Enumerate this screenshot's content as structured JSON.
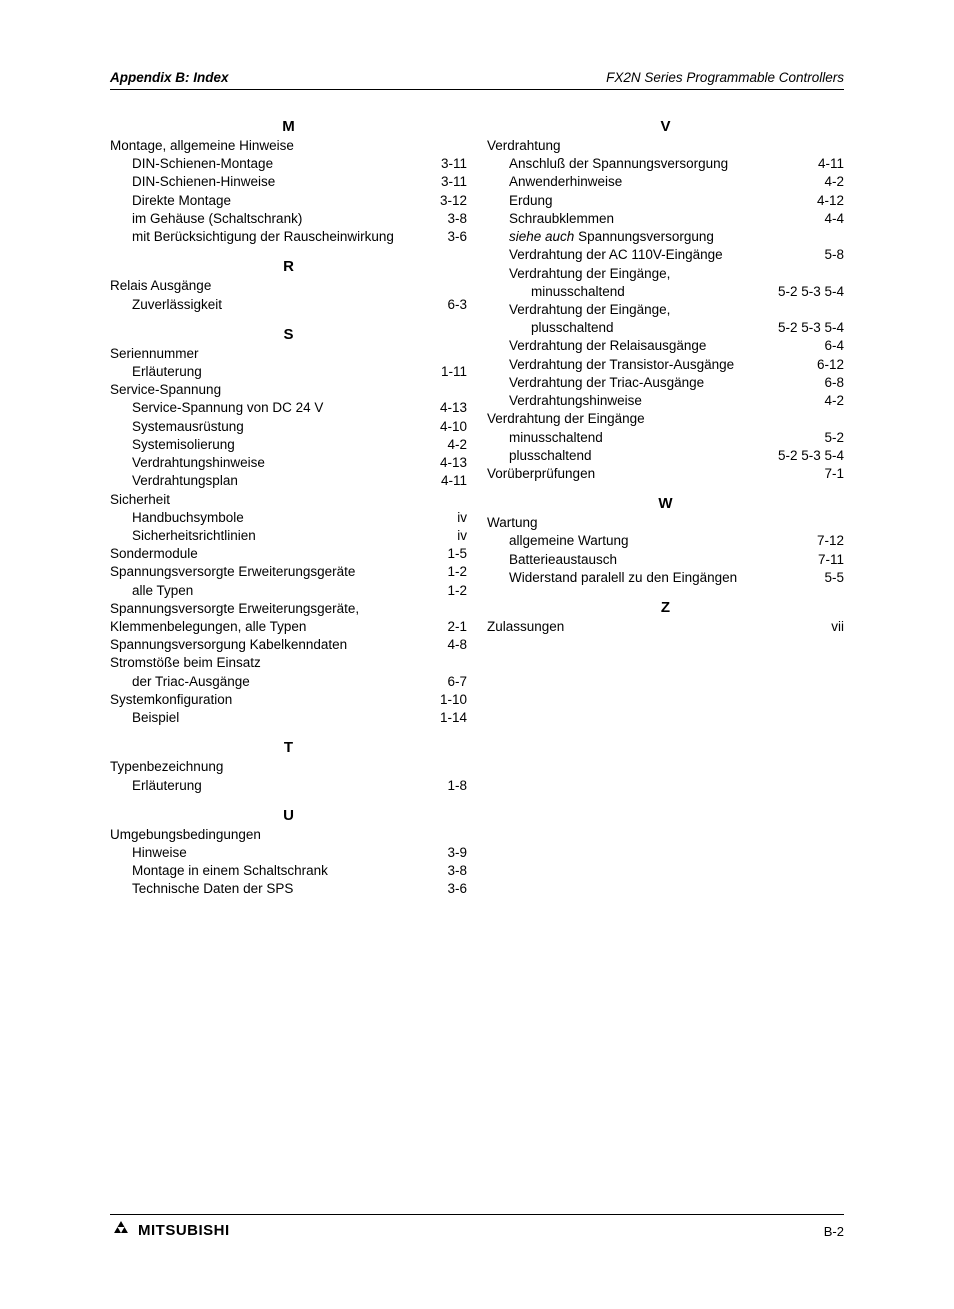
{
  "header": {
    "left": "Appendix B: Index",
    "right": "FX2N Series Programmable Controllers"
  },
  "footer": {
    "brand": "MITSUBISHI",
    "page": "B-2"
  },
  "left_col": [
    {
      "type": "letter",
      "text": "M",
      "first": true
    },
    {
      "type": "l0",
      "term": "Montage, allgemeine Hinweise",
      "pages": ""
    },
    {
      "type": "l1",
      "term": "DIN-Schienen-Montage",
      "pages": "3-11"
    },
    {
      "type": "l1",
      "term": "DIN-Schienen-Hinweise",
      "pages": "3-11"
    },
    {
      "type": "l1",
      "term": "Direkte Montage",
      "pages": "3-12"
    },
    {
      "type": "l1",
      "term": "im Gehäuse (Schaltschrank)",
      "pages": "3-8"
    },
    {
      "type": "l1",
      "term": "mit Berücksichtigung der Rauscheinwirkung",
      "pages": "3-6"
    },
    {
      "type": "letter",
      "text": "R"
    },
    {
      "type": "l0",
      "term": "Relais Ausgänge",
      "pages": ""
    },
    {
      "type": "l1",
      "term": "Zuverlässigkeit",
      "pages": "6-3"
    },
    {
      "type": "letter",
      "text": "S"
    },
    {
      "type": "l0",
      "term": "Seriennummer",
      "pages": ""
    },
    {
      "type": "l1",
      "term": "Erläuterung",
      "pages": "1-11"
    },
    {
      "type": "l0",
      "term": "Service-Spannung",
      "pages": ""
    },
    {
      "type": "l1",
      "term": "Service-Spannung von DC 24 V",
      "pages": "4-13"
    },
    {
      "type": "l1",
      "term": "Systemausrüstung",
      "pages": "4-10"
    },
    {
      "type": "l1",
      "term": "Systemisolierung",
      "pages": "4-2"
    },
    {
      "type": "l1",
      "term": "Verdrahtungshinweise",
      "pages": "4-13"
    },
    {
      "type": "l1",
      "term": "Verdrahtungsplan",
      "pages": "4-11"
    },
    {
      "type": "l0",
      "term": "Sicherheit",
      "pages": ""
    },
    {
      "type": "l1",
      "term": "Handbuchsymbole",
      "pages": "iv"
    },
    {
      "type": "l1",
      "term": "Sicherheitsrichtlinien",
      "pages": "iv"
    },
    {
      "type": "l0",
      "term": "Sondermodule",
      "pages": "1-5"
    },
    {
      "type": "l0",
      "term": "Spannungsversorgte Erweiterungsgeräte",
      "pages": "1-2"
    },
    {
      "type": "l1",
      "term": "alle Typen",
      "pages": "1-2"
    },
    {
      "type": "l0",
      "term": "Spannungsversorgte Erweiterungsgeräte,",
      "pages": ""
    },
    {
      "type": "l0",
      "term": "Klemmenbelegungen, alle Typen",
      "pages": "2-1"
    },
    {
      "type": "l0",
      "term": "Spannungsversorgung Kabelkenndaten",
      "pages": "4-8"
    },
    {
      "type": "l0",
      "term": "Stromstöße beim Einsatz",
      "pages": ""
    },
    {
      "type": "l1",
      "term": "der Triac-Ausgänge",
      "pages": "6-7"
    },
    {
      "type": "l0",
      "term": "Systemkonfiguration",
      "pages": "1-10"
    },
    {
      "type": "l1",
      "term": "Beispiel",
      "pages": "1-14"
    },
    {
      "type": "letter",
      "text": "T"
    },
    {
      "type": "l0",
      "term": "Typenbezeichnung",
      "pages": ""
    },
    {
      "type": "l1",
      "term": "Erläuterung",
      "pages": "1-8"
    },
    {
      "type": "letter",
      "text": "U"
    },
    {
      "type": "l0",
      "term": "Umgebungsbedingungen",
      "pages": ""
    },
    {
      "type": "l1",
      "term": "Hinweise",
      "pages": "3-9"
    },
    {
      "type": "l1",
      "term": "Montage in einem Schaltschrank",
      "pages": "3-8"
    },
    {
      "type": "l1",
      "term": "Technische Daten der SPS",
      "pages": "3-6"
    }
  ],
  "right_col": [
    {
      "type": "letter",
      "text": "V",
      "first": true
    },
    {
      "type": "l0",
      "term": "Verdrahtung",
      "pages": ""
    },
    {
      "type": "l1",
      "term": "Anschluß der Spannungsversorgung",
      "pages": "4-11"
    },
    {
      "type": "l1",
      "term": "Anwenderhinweise",
      "pages": "4-2"
    },
    {
      "type": "l1",
      "term": "Erdung",
      "pages": "4-12"
    },
    {
      "type": "l1",
      "term": "Schraubklemmen",
      "pages": "4-4"
    },
    {
      "type": "l1see",
      "italic": "siehe auch",
      "rest": " Spannungsversorgung",
      "pages": ""
    },
    {
      "type": "l1",
      "term": "Verdrahtung der AC 110V-Eingänge",
      "pages": "5-8"
    },
    {
      "type": "l1",
      "term": "Verdrahtung der Eingänge,",
      "pages": ""
    },
    {
      "type": "l2",
      "term": "minusschaltend",
      "pages": "5-2  5-3  5-4"
    },
    {
      "type": "l1",
      "term": "Verdrahtung der Eingänge,",
      "pages": ""
    },
    {
      "type": "l2",
      "term": "plusschaltend",
      "pages": "5-2  5-3  5-4"
    },
    {
      "type": "l1",
      "term": "Verdrahtung der Relaisausgänge",
      "pages": "6-4"
    },
    {
      "type": "l1",
      "term": "Verdrahtung der Transistor-Ausgänge",
      "pages": "6-12"
    },
    {
      "type": "l1",
      "term": "Verdrahtung der Triac-Ausgänge",
      "pages": "6-8"
    },
    {
      "type": "l1",
      "term": "Verdrahtungshinweise",
      "pages": "4-2"
    },
    {
      "type": "l0",
      "term": "Verdrahtung der Eingänge",
      "pages": ""
    },
    {
      "type": "l1",
      "term": "minusschaltend",
      "pages": "5-2"
    },
    {
      "type": "l1",
      "term": "plusschaltend",
      "pages": "5-2  5-3  5-4"
    },
    {
      "type": "l0",
      "term": "Vorüberprüfungen",
      "pages": "7-1"
    },
    {
      "type": "letter",
      "text": "W"
    },
    {
      "type": "l0",
      "term": "Wartung",
      "pages": ""
    },
    {
      "type": "l1",
      "term": "allgemeine Wartung",
      "pages": "7-12"
    },
    {
      "type": "l1",
      "term": "Batterieaustausch",
      "pages": "7-11"
    },
    {
      "type": "l1",
      "term": "Widerstand paralell zu den Eingängen",
      "pages": "5-5"
    },
    {
      "type": "letter",
      "text": "Z"
    },
    {
      "type": "l0",
      "term": "Zulassungen",
      "pages": "vii"
    }
  ]
}
